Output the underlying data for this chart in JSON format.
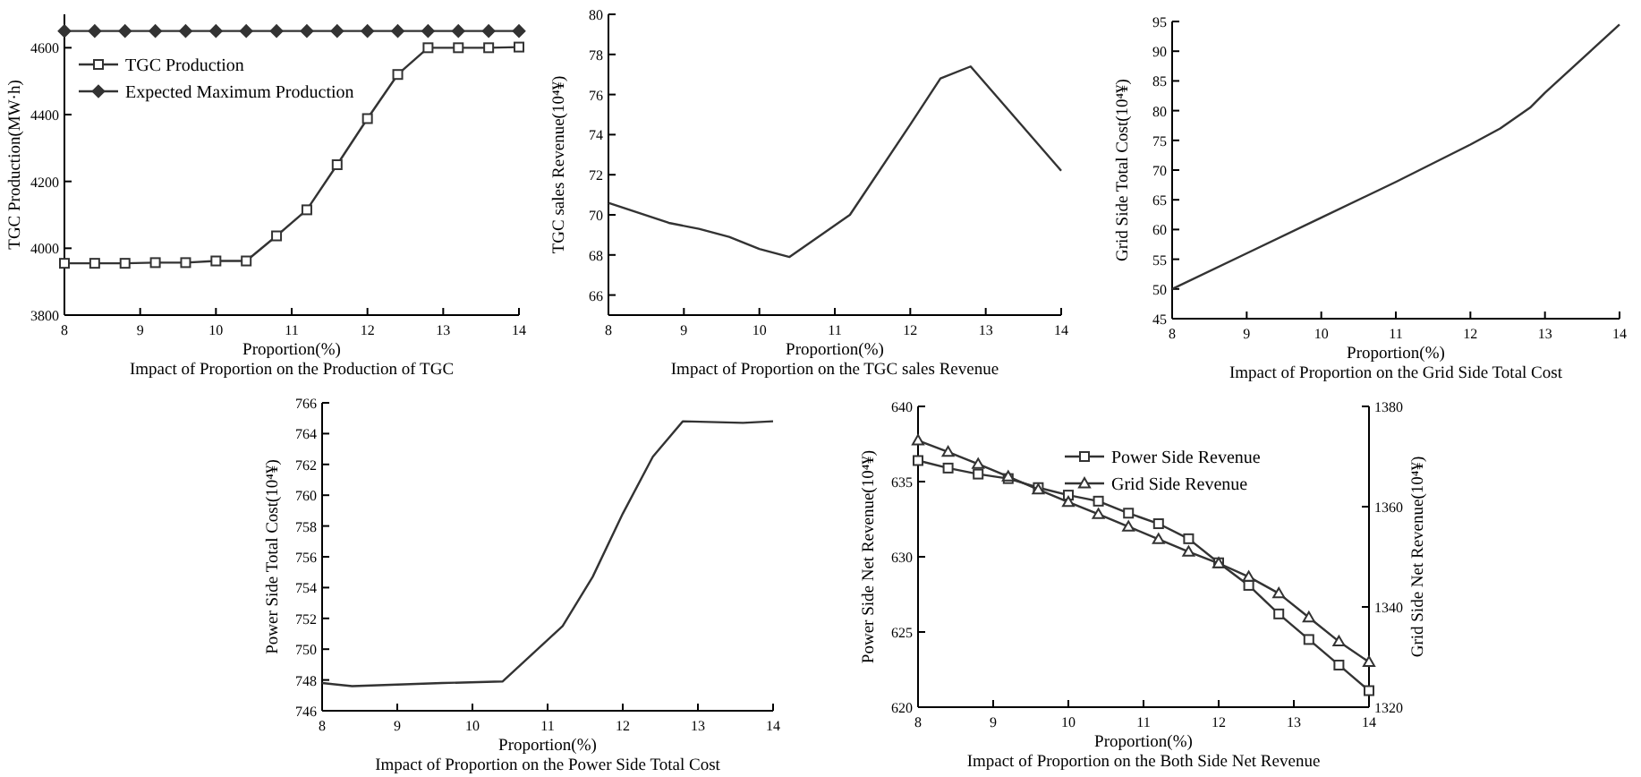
{
  "chart_data": [
    {
      "type": "line",
      "title": "Impact of Proportion on the Production of TGC",
      "xlabel": "Proportion(%)",
      "ylabel": "TGC Production(MW·h)",
      "x": [
        8,
        8.4,
        8.8,
        9.2,
        9.6,
        10,
        10.4,
        10.8,
        11.2,
        11.6,
        12,
        12.4,
        12.8,
        13.2,
        13.6,
        14
      ],
      "xlim": [
        8,
        14
      ],
      "xticks": [
        8,
        9,
        10,
        11,
        12,
        13,
        14
      ],
      "ylim": [
        3800,
        4700
      ],
      "yticks": [
        3800,
        4000,
        4200,
        4400,
        4600
      ],
      "legend": "top left",
      "series": [
        {
          "name": "TGC Production",
          "color": "#333333",
          "marker": "square",
          "values": [
            3955,
            3955,
            3955,
            3957,
            3957,
            3962,
            3962,
            4037,
            4115,
            4250,
            4388,
            4520,
            4600,
            4600,
            4600,
            4602
          ]
        },
        {
          "name": "Expected Maximum Production",
          "color": "#333333",
          "marker": "diamond",
          "values": [
            4650,
            4650,
            4650,
            4650,
            4650,
            4650,
            4650,
            4650,
            4650,
            4650,
            4650,
            4650,
            4650,
            4650,
            4650,
            4650
          ]
        }
      ]
    },
    {
      "type": "line",
      "title": "Impact of Proportion on the TGC sales Revenue",
      "xlabel": "Proportion(%)",
      "ylabel": "TGC sales Revenue(10⁴¥)",
      "x": [
        8,
        8.8,
        9.2,
        9.6,
        10,
        10.4,
        11.2,
        12,
        12.4,
        12.8,
        14
      ],
      "xlim": [
        8,
        14
      ],
      "xticks": [
        8,
        9,
        10,
        11,
        12,
        13,
        14
      ],
      "ylim": [
        65,
        80
      ],
      "yticks": [
        66,
        68,
        70,
        72,
        74,
        76,
        78,
        80
      ],
      "series": [
        {
          "color": "#333333",
          "values": [
            70.6,
            69.6,
            69.3,
            68.9,
            68.3,
            67.9,
            70.0,
            74.5,
            76.8,
            77.4,
            72.2
          ]
        }
      ]
    },
    {
      "type": "line",
      "title": "Impact of Proportion on the Grid Side Total Cost",
      "xlabel": "Proportion(%)",
      "ylabel": "Grid Side Total Cost(10⁴¥)",
      "x": [
        8,
        9,
        10,
        11,
        12,
        12.4,
        12.8,
        13,
        14
      ],
      "xlim": [
        8,
        14
      ],
      "xticks": [
        8,
        9,
        10,
        11,
        12,
        13,
        14
      ],
      "ylim": [
        45,
        95
      ],
      "yticks": [
        45,
        50,
        55,
        60,
        65,
        70,
        75,
        80,
        85,
        90,
        95
      ],
      "series": [
        {
          "color": "#333333",
          "values": [
            50,
            56,
            62,
            68,
            74.3,
            77,
            80.5,
            83,
            94.5
          ]
        }
      ]
    },
    {
      "type": "line",
      "title": "Impact of Proportion on the Power Side Total Cost",
      "xlabel": "Proportion(%)",
      "ylabel": "Power Side Total Cost(10⁴¥)",
      "x": [
        8,
        8.4,
        9,
        9.6,
        10.4,
        11.2,
        11.6,
        12,
        12.4,
        12.8,
        13.6,
        14
      ],
      "xlim": [
        8,
        14
      ],
      "xticks": [
        8,
        9,
        10,
        11,
        12,
        13,
        14
      ],
      "ylim": [
        746,
        766
      ],
      "yticks": [
        746,
        748,
        750,
        752,
        754,
        756,
        758,
        760,
        762,
        764,
        766
      ],
      "series": [
        {
          "color": "#333333",
          "values": [
            747.8,
            747.6,
            747.7,
            747.8,
            747.9,
            751.5,
            754.7,
            758.8,
            762.5,
            764.8,
            764.7,
            764.8
          ]
        }
      ]
    },
    {
      "type": "line",
      "title": "Impact of Proportion on the Both Side Net Revenue",
      "xlabel": "Proportion(%)",
      "ylabel": "Power Side Net Revenue(10⁴¥)",
      "y2label": "Grid Side Net Revenue(10⁴¥)",
      "x": [
        8,
        8.4,
        8.8,
        9.2,
        9.6,
        10,
        10.4,
        10.8,
        11.2,
        11.6,
        12,
        12.4,
        12.8,
        13.2,
        13.6,
        14
      ],
      "xlim": [
        8,
        14
      ],
      "xticks": [
        8,
        9,
        10,
        11,
        12,
        13,
        14
      ],
      "ylim": [
        620,
        640
      ],
      "yticks": [
        620,
        625,
        630,
        635,
        640
      ],
      "y2lim": [
        1320,
        1380
      ],
      "y2ticks": [
        1320,
        1340,
        1360,
        1380
      ],
      "legend": "top right",
      "series": [
        {
          "name": "Power Side Revenue",
          "color": "#333333",
          "marker": "square",
          "values": [
            636.4,
            635.9,
            635.5,
            635.2,
            634.6,
            634.1,
            633.7,
            632.9,
            632.2,
            631.2,
            629.6,
            628.1,
            626.2,
            624.5,
            622.8,
            621.1
          ]
        },
        {
          "name": "Grid Side Revenue",
          "color": "#333333",
          "marker": "triangle",
          "axis": "y2",
          "values": [
            1373.2,
            1370.9,
            1368.5,
            1366.0,
            1363.4,
            1360.9,
            1358.5,
            1356.0,
            1353.5,
            1351.0,
            1348.7,
            1346.0,
            1342.7,
            1337.9,
            1333.1,
            1329.0
          ]
        }
      ]
    }
  ]
}
